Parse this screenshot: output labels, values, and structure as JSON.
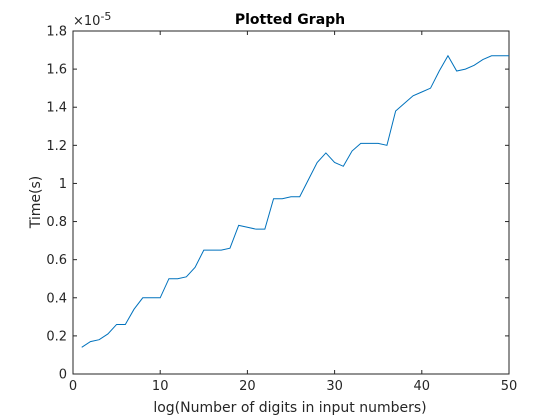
{
  "chart_data": {
    "type": "line",
    "title": "Plotted Graph",
    "xlabel": "log(Number of digits in input numbers)",
    "ylabel": "Time(s)",
    "xlim": [
      0,
      50
    ],
    "ylim": [
      0,
      1.8
    ],
    "y_multiplier": "×10",
    "y_multiplier_exponent": "-5",
    "x_ticks": [
      0,
      10,
      20,
      30,
      40,
      50
    ],
    "y_ticks": [
      0,
      0.2,
      0.4,
      0.6,
      0.8,
      1,
      1.2,
      1.4,
      1.6,
      1.8
    ],
    "grid": false,
    "series": [
      {
        "color": "#0072BD",
        "x": [
          1,
          2,
          3,
          4,
          5,
          6,
          7,
          8,
          9,
          10,
          11,
          12,
          13,
          14,
          15,
          16,
          17,
          18,
          19,
          20,
          21,
          22,
          23,
          24,
          25,
          26,
          27,
          28,
          29,
          30,
          31,
          32,
          33,
          34,
          35,
          36,
          37,
          38,
          39,
          40,
          41,
          42,
          43,
          44,
          45,
          46,
          47,
          48,
          49,
          50
        ],
        "y": [
          0.14,
          0.17,
          0.18,
          0.21,
          0.26,
          0.26,
          0.34,
          0.4,
          0.4,
          0.4,
          0.5,
          0.5,
          0.51,
          0.56,
          0.65,
          0.65,
          0.65,
          0.66,
          0.78,
          0.77,
          0.76,
          0.76,
          0.92,
          0.92,
          0.93,
          0.93,
          1.02,
          1.11,
          1.16,
          1.11,
          1.09,
          1.17,
          1.21,
          1.21,
          1.21,
          1.2,
          1.38,
          1.42,
          1.46,
          1.48,
          1.5,
          1.59,
          1.67,
          1.59,
          1.6,
          1.62,
          1.65,
          1.67,
          1.67,
          1.67
        ]
      }
    ]
  }
}
